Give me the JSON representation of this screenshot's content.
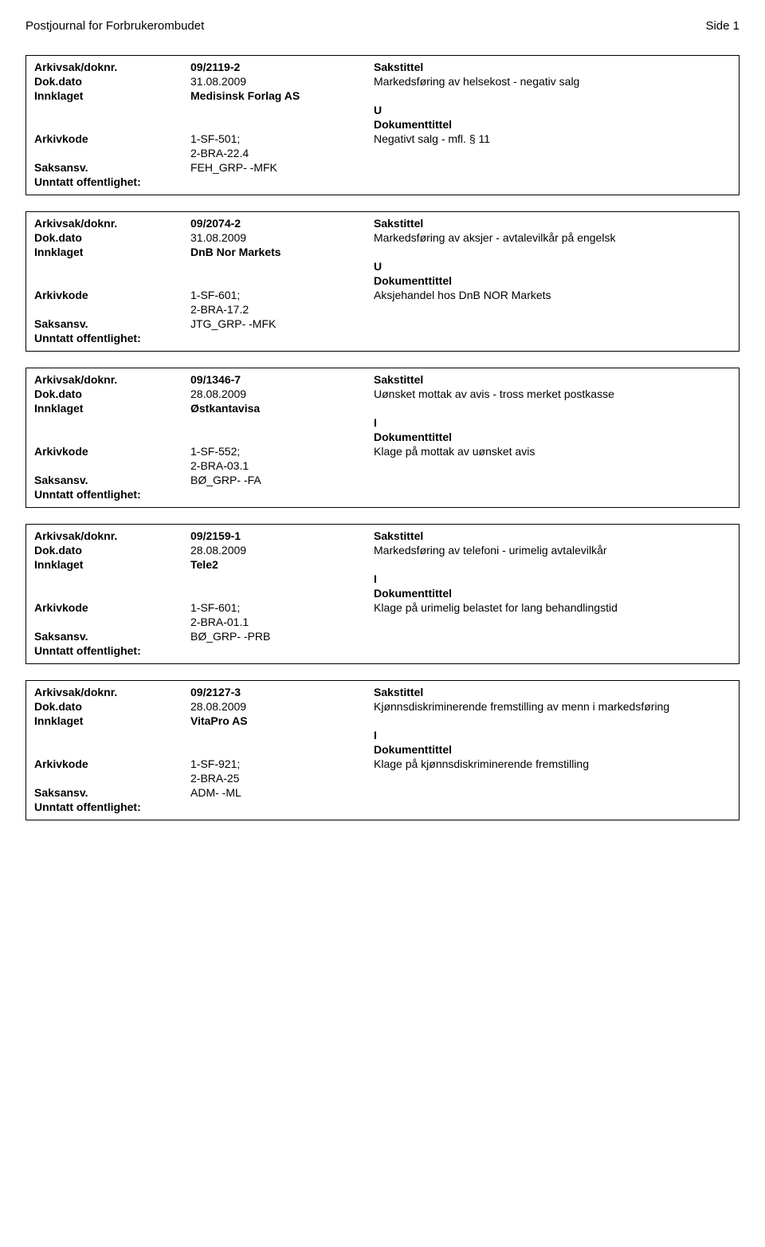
{
  "header": {
    "journal_title": "Postjournal for Forbrukerombudet",
    "page_label": "Side 1"
  },
  "labels": {
    "arkivsak": "Arkivsak/doknr.",
    "sakstittel": "Sakstittel",
    "dokdato": "Dok.dato",
    "innklaget": "Innklaget",
    "dokumenttittel": "Dokumenttittel",
    "arkivkode": "Arkivkode",
    "saksansv": "Saksansv.",
    "unntatt": "Unntatt offentlighet:"
  },
  "records": [
    {
      "arkivsak": "09/2119-2",
      "dokdato": "31.08.2009",
      "saksbeskrivelse": "Markedsføring av helsekost - negativ salg",
      "innklaget": "Medisinsk Forlag AS",
      "doc_code": "U",
      "arkivkode_lines": [
        "1-SF-501;",
        "2-BRA-22.4"
      ],
      "dokumenttittel_text": "Negativt salg - mfl. § 11",
      "saksansv": "FEH_GRP- -MFK"
    },
    {
      "arkivsak": "09/2074-2",
      "dokdato": "31.08.2009",
      "saksbeskrivelse": "Markedsføring av aksjer - avtalevilkår på engelsk",
      "innklaget": "DnB Nor Markets",
      "doc_code": "U",
      "arkivkode_lines": [
        "1-SF-601;",
        "2-BRA-17.2"
      ],
      "dokumenttittel_text": "Aksjehandel hos DnB NOR Markets",
      "saksansv": "JTG_GRP- -MFK"
    },
    {
      "arkivsak": "09/1346-7",
      "dokdato": "28.08.2009",
      "saksbeskrivelse": "Uønsket mottak av avis - tross merket postkasse",
      "innklaget": "Østkantavisa",
      "doc_code": "I",
      "arkivkode_lines": [
        "1-SF-552;",
        "2-BRA-03.1"
      ],
      "dokumenttittel_text": "Klage på mottak av uønsket avis",
      "saksansv": "BØ_GRP- -FA"
    },
    {
      "arkivsak": "09/2159-1",
      "dokdato": "28.08.2009",
      "saksbeskrivelse": "Markedsføring av telefoni - urimelig avtalevilkår",
      "innklaget": "Tele2",
      "doc_code": "I",
      "arkivkode_lines": [
        "1-SF-601;",
        "2-BRA-01.1"
      ],
      "dokumenttittel_text": "Klage på urimelig belastet for lang behandlingstid",
      "saksansv": "BØ_GRP- -PRB"
    },
    {
      "arkivsak": "09/2127-3",
      "dokdato": "28.08.2009",
      "saksbeskrivelse": "Kjønnsdiskriminerende fremstilling av menn  i markedsføring",
      "innklaget": "VitaPro AS",
      "doc_code": "I",
      "arkivkode_lines": [
        "1-SF-921;",
        "2-BRA-25"
      ],
      "dokumenttittel_text": "Klage på kjønnsdiskriminerende fremstilling",
      "saksansv": "ADM- -ML"
    }
  ]
}
